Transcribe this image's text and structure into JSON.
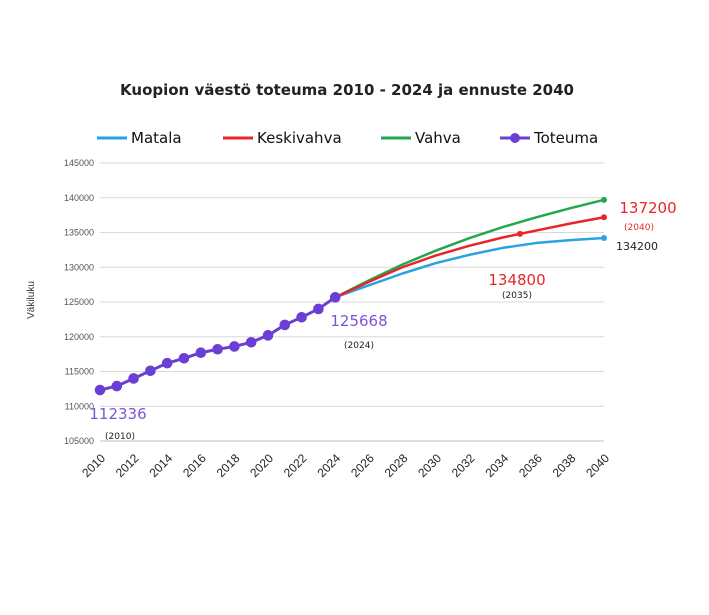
{
  "chart_data": {
    "type": "line",
    "title": "Kuopion väestö toteuma 2010 - 2024 ja ennuste 2040",
    "ylabel": "Väkiluku",
    "xlabel": "",
    "ylim": [
      105000,
      145000
    ],
    "xlim": [
      2010,
      2040
    ],
    "y_ticks": [
      105000,
      110000,
      115000,
      120000,
      125000,
      130000,
      135000,
      140000,
      145000
    ],
    "x_ticks": [
      2010,
      2012,
      2014,
      2016,
      2018,
      2020,
      2022,
      2024,
      2026,
      2028,
      2030,
      2032,
      2034,
      2036,
      2038,
      2040
    ],
    "grid": "horizontal",
    "legend_position": "top",
    "series": [
      {
        "name": "Matala",
        "color": "#2aa3e0",
        "x": [
          2024,
          2026,
          2028,
          2030,
          2032,
          2034,
          2036,
          2038,
          2040
        ],
        "values": [
          125668,
          127400,
          129100,
          130600,
          131800,
          132800,
          133500,
          133900,
          134200
        ]
      },
      {
        "name": "Keskivahva",
        "color": "#e8262a",
        "x": [
          2024,
          2026,
          2028,
          2030,
          2032,
          2034,
          2035,
          2036,
          2038,
          2040
        ],
        "values": [
          125668,
          127900,
          130000,
          131700,
          133100,
          134300,
          134800,
          135300,
          136300,
          137200
        ]
      },
      {
        "name": "Vahva",
        "color": "#23a84f",
        "x": [
          2024,
          2026,
          2028,
          2030,
          2032,
          2034,
          2036,
          2038,
          2040
        ],
        "values": [
          125668,
          128100,
          130400,
          132400,
          134200,
          135800,
          137200,
          138500,
          139700
        ]
      },
      {
        "name": "Toteuma",
        "color": "#6a40d4",
        "x": [
          2010,
          2011,
          2012,
          2013,
          2014,
          2015,
          2016,
          2017,
          2018,
          2019,
          2020,
          2021,
          2022,
          2023,
          2024
        ],
        "values": [
          112336,
          112900,
          114000,
          115100,
          116200,
          116900,
          117700,
          118200,
          118600,
          119200,
          120200,
          121700,
          122800,
          124000,
          125668
        ]
      }
    ],
    "markers": [
      {
        "series": "Keskivahva",
        "x": 2035,
        "value": 134800
      },
      {
        "series": "Keskivahva",
        "x": 2040,
        "value": 137200
      },
      {
        "series": "Vahva",
        "x": 2040,
        "value": 139700
      },
      {
        "series": "Matala",
        "x": 2040,
        "value": 134200
      }
    ],
    "annotations": [
      {
        "text": "112336",
        "sub": "(2010)",
        "color": "#7b55d8"
      },
      {
        "text": "125668",
        "sub": "(2024)",
        "color": "#7b55d8"
      },
      {
        "text": "134800",
        "sub": "(2035)",
        "color": "#e8262a"
      },
      {
        "text": "137200",
        "sub": "(2040)",
        "color": "#e8262a"
      },
      {
        "text": "134200",
        "sub": "",
        "color": "#222222"
      }
    ]
  }
}
